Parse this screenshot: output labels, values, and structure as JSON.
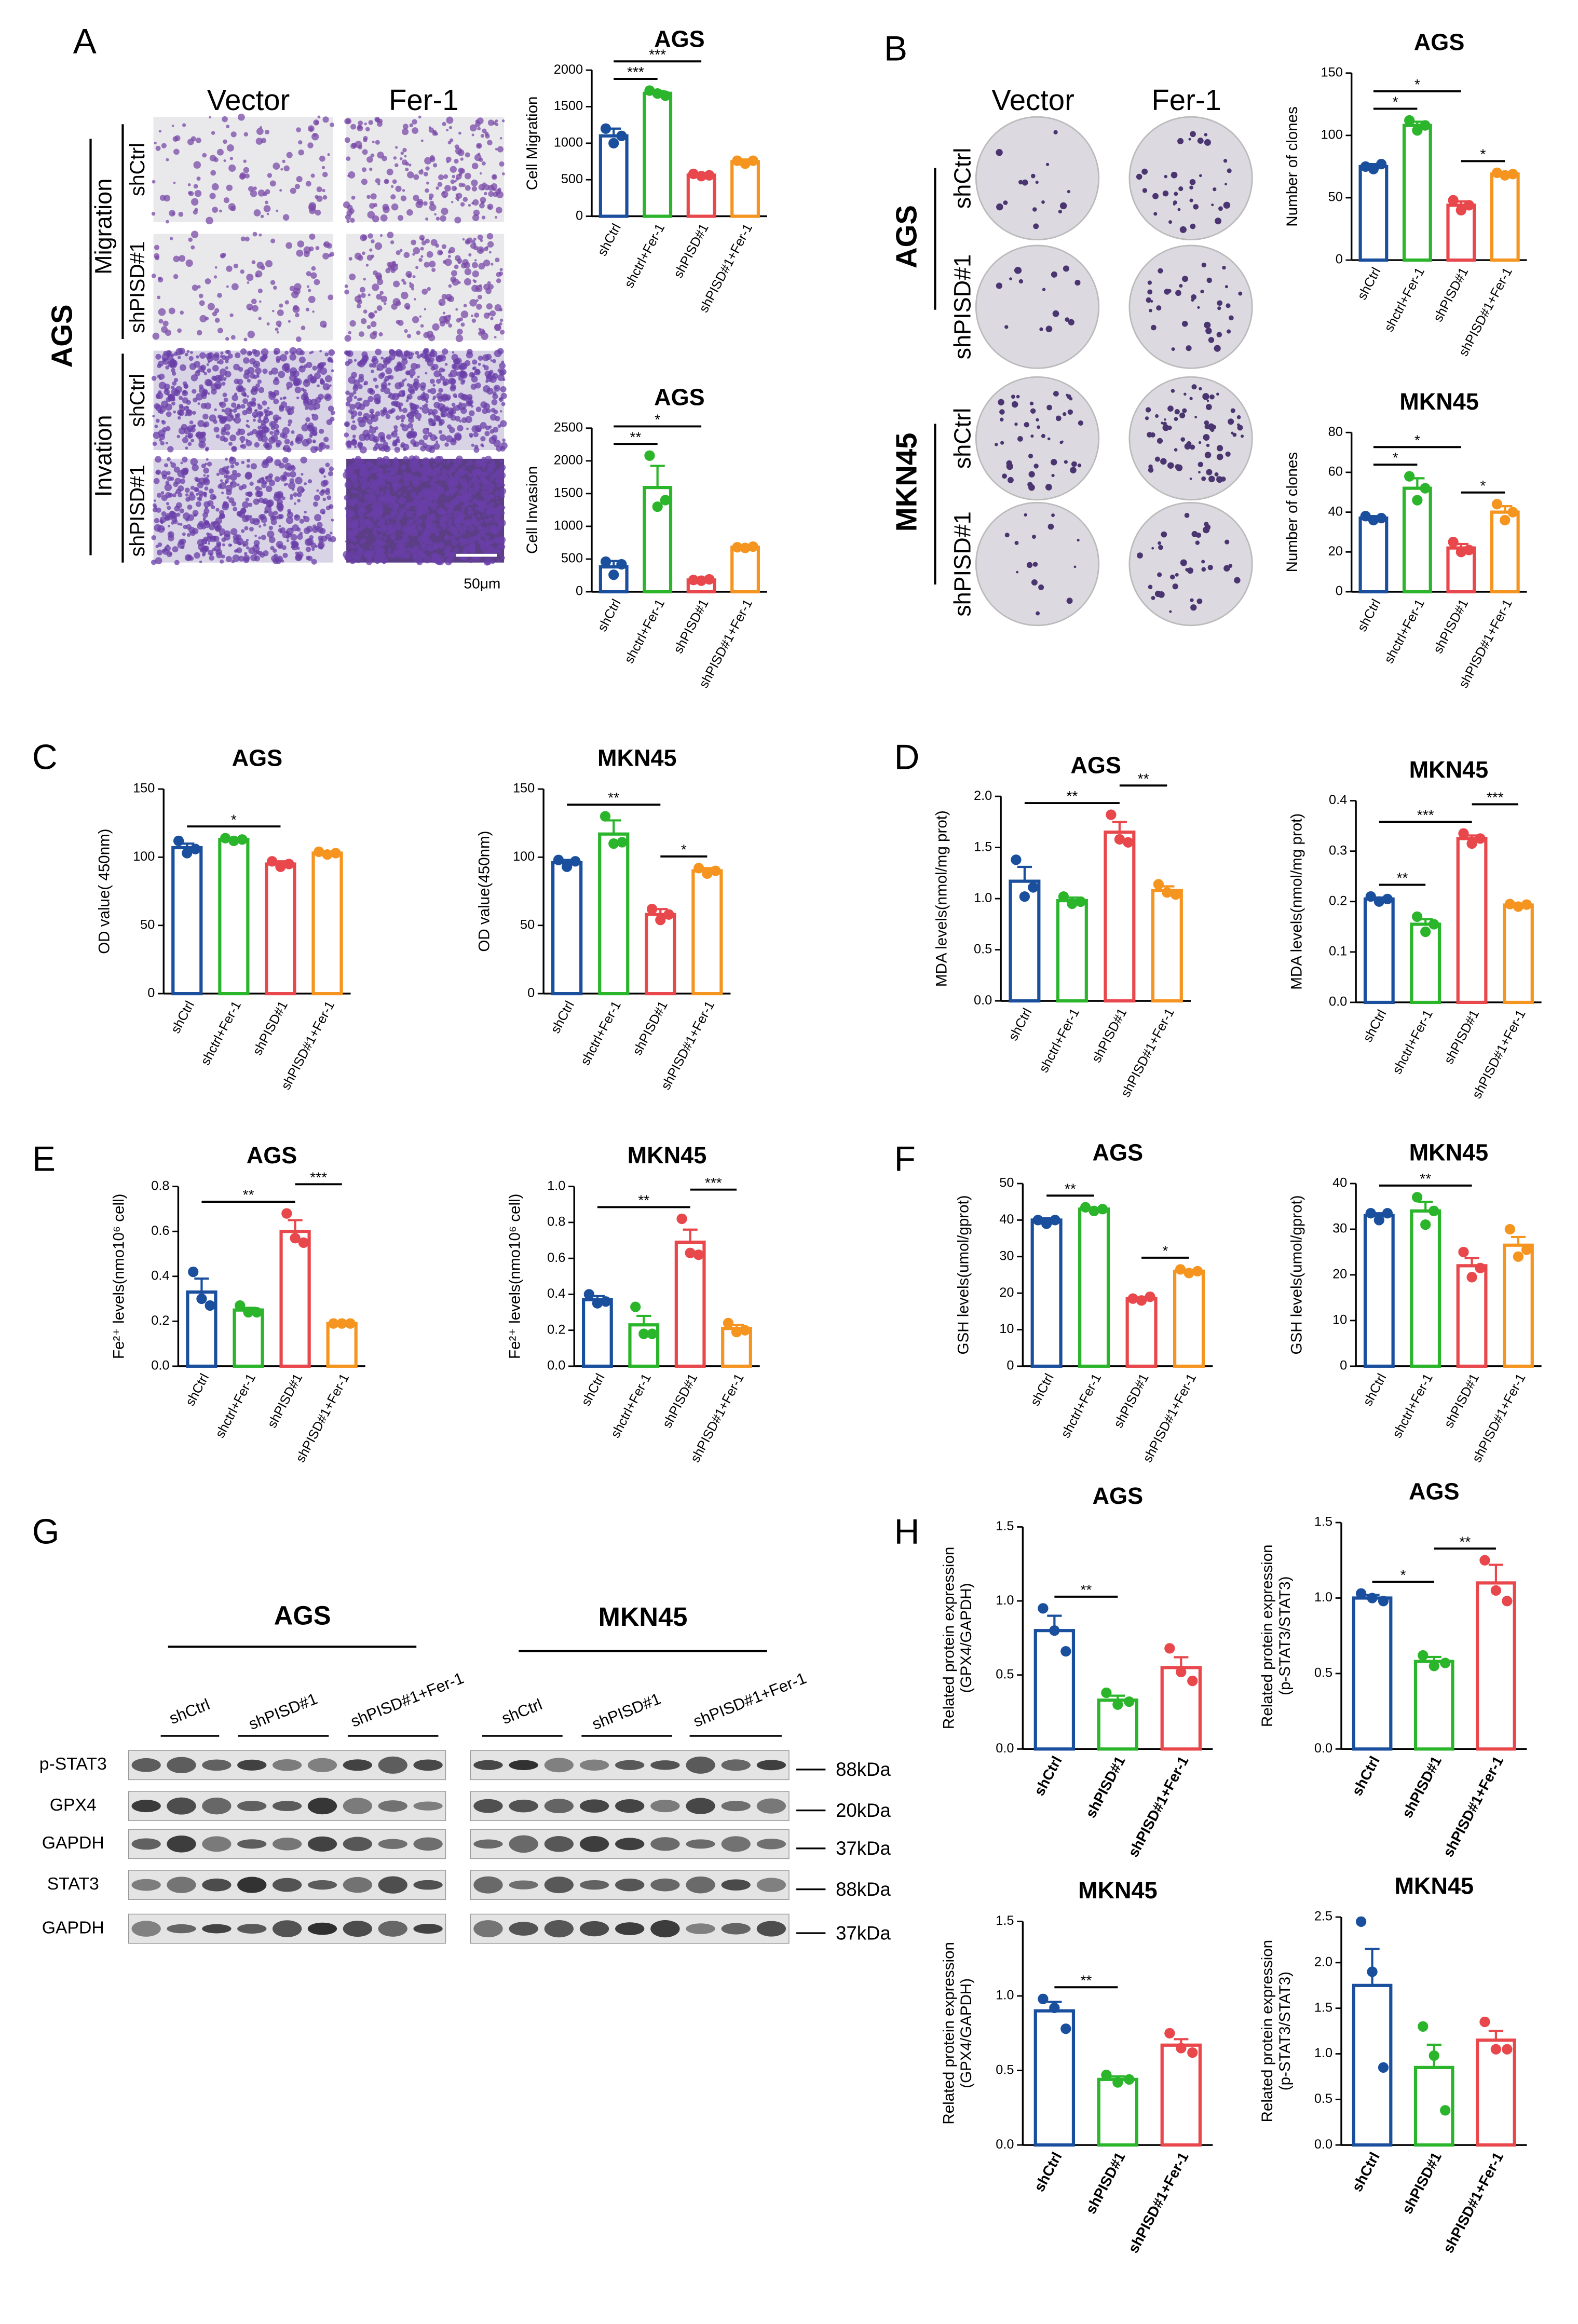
{
  "panel_labels": [
    "A",
    "B",
    "C",
    "D",
    "E",
    "F",
    "G",
    "H"
  ],
  "panel_a": {
    "columns": [
      "Vector",
      "Fer-1"
    ],
    "cell_line": "AGS",
    "groups": [
      "Migration",
      "Invation"
    ],
    "rows": [
      "shCtrl",
      "shPISD#1",
      "shCtrl",
      "shPISD#1"
    ],
    "scale_bar": "50μm"
  },
  "panel_b": {
    "columns": [
      "Vector",
      "Fer-1"
    ],
    "cell_lines": [
      "AGS",
      "MKN45"
    ],
    "rows": [
      "shCtrl",
      "shPISD#1",
      "shCtrl",
      "shPISD#1"
    ]
  },
  "panel_g": {
    "cell_lines": [
      "AGS",
      "MKN45"
    ],
    "groups": [
      "shCtrl",
      "shPISD#1",
      "shPISD#1+Fer-1",
      "shCtrl",
      "shPISD#1",
      "shPISD#1+Fer-1"
    ],
    "proteins": [
      "p-STAT3",
      "GPX4",
      "GAPDH",
      "STAT3",
      "GAPDH"
    ],
    "sizes": [
      "88kDa",
      "20kDa",
      "37kDa",
      "88kDa",
      "37kDa"
    ]
  },
  "chart_data": [
    {
      "type": "bar",
      "title": "AGS",
      "ylabel": [
        "Cell Migration"
      ],
      "categories": [
        "shCtrl",
        "shctrl+Fer-1",
        "shPISD#1",
        "shPISD#1+Fer-1"
      ],
      "colors": [
        "#1a4f9e",
        "#2bb52b",
        "#e8474c",
        "#f5951f"
      ],
      "values": [
        1100,
        1683,
        563,
        747
      ],
      "errors": [
        100,
        30,
        20,
        30
      ],
      "points": [
        [
          1200,
          1000,
          1100
        ],
        [
          1720,
          1680,
          1650
        ],
        [
          580,
          550,
          560
        ],
        [
          760,
          720,
          760
        ]
      ],
      "ylim": [
        0,
        2000
      ],
      "yticks": [
        0,
        500,
        1000,
        1500,
        2000
      ],
      "significance": [
        {
          "groups": [
            0,
            1
          ],
          "label": "***"
        },
        {
          "groups": [
            0,
            2
          ],
          "label": "***"
        }
      ]
    },
    {
      "type": "bar",
      "title": "AGS",
      "ylabel": [
        "Cell Invasion"
      ],
      "categories": [
        "shCtrl",
        "shctrl+Fer-1",
        "shPISD#1",
        "shPISD#1+Fer-1"
      ],
      "colors": [
        "#1a4f9e",
        "#2bb52b",
        "#e8474c",
        "#f5951f"
      ],
      "values": [
        380,
        1593,
        180,
        680
      ],
      "errors": [
        90,
        330,
        10,
        15
      ],
      "points": [
        [
          460,
          260,
          420
        ],
        [
          2080,
          1300,
          1400
        ],
        [
          180,
          170,
          190
        ],
        [
          680,
          670,
          690
        ]
      ],
      "ylim": [
        0,
        2500
      ],
      "yticks": [
        0,
        500,
        1000,
        1500,
        2000,
        2500
      ],
      "significance": [
        {
          "groups": [
            0,
            1
          ],
          "label": "**"
        },
        {
          "groups": [
            0,
            2
          ],
          "label": "*"
        }
      ]
    },
    {
      "type": "bar",
      "title": "AGS",
      "ylabel": [
        "Number of clones"
      ],
      "categories": [
        "shCtrl",
        "shctrl+Fer-1",
        "shPISD#1",
        "shPISD#1+Fer-1"
      ],
      "colors": [
        "#1a4f9e",
        "#2bb52b",
        "#e8474c",
        "#f5951f"
      ],
      "values": [
        75,
        108,
        44,
        69
      ],
      "errors": [
        2,
        3,
        3,
        1
      ],
      "points": [
        [
          75,
          73,
          77
        ],
        [
          112,
          104,
          108
        ],
        [
          48,
          40,
          44
        ],
        [
          70,
          68,
          69
        ]
      ],
      "ylim": [
        0,
        150
      ],
      "yticks": [
        0,
        50,
        100,
        150
      ],
      "significance": [
        {
          "groups": [
            0,
            1
          ],
          "label": "*"
        },
        {
          "groups": [
            0,
            2
          ],
          "label": "*"
        },
        {
          "groups": [
            2,
            3
          ],
          "label": "*"
        }
      ]
    },
    {
      "type": "bar",
      "title": "MKN45",
      "ylabel": [
        "Number of clones"
      ],
      "categories": [
        "shCtrl",
        "shctrl+Fer-1",
        "shPISD#1",
        "shPISD#1+Fer-1"
      ],
      "colors": [
        "#1a4f9e",
        "#2bb52b",
        "#e8474c",
        "#f5951f"
      ],
      "values": [
        37,
        52,
        22,
        40
      ],
      "errors": [
        1,
        5,
        2,
        3
      ],
      "points": [
        [
          38,
          36,
          37
        ],
        [
          58,
          46,
          52
        ],
        [
          25,
          20,
          21
        ],
        [
          44,
          36,
          40
        ]
      ],
      "ylim": [
        0,
        80
      ],
      "yticks": [
        0,
        20,
        40,
        60,
        80
      ],
      "significance": [
        {
          "groups": [
            0,
            1
          ],
          "label": "*"
        },
        {
          "groups": [
            0,
            2
          ],
          "label": "*"
        },
        {
          "groups": [
            2,
            3
          ],
          "label": "*"
        }
      ]
    },
    {
      "type": "bar",
      "title": "AGS",
      "ylabel": [
        "OD value( 450nm)"
      ],
      "categories": [
        "shCtrl",
        "shctrl+Fer-1",
        "shPISD#1",
        "shPISD#1+Fer-1"
      ],
      "colors": [
        "#1a4f9e",
        "#2bb52b",
        "#e8474c",
        "#f5951f"
      ],
      "values": [
        107,
        113,
        95,
        103
      ],
      "errors": [
        3,
        1,
        2,
        1
      ],
      "points": [
        [
          112,
          103,
          106
        ],
        [
          114,
          112,
          113
        ],
        [
          97,
          93,
          95
        ],
        [
          104,
          102,
          103
        ]
      ],
      "ylim": [
        0,
        150
      ],
      "yticks": [
        0,
        50,
        100,
        150
      ],
      "significance": [
        {
          "groups": [
            0,
            2
          ],
          "label": "*"
        }
      ]
    },
    {
      "type": "bar",
      "title": "MKN45",
      "ylabel": [
        "OD value(450nm)"
      ],
      "categories": [
        "shCtrl",
        "shctrl+Fer-1",
        "shPISD#1",
        "shPISD#1+Fer-1"
      ],
      "colors": [
        "#1a4f9e",
        "#2bb52b",
        "#e8474c",
        "#f5951f"
      ],
      "values": [
        96,
        117,
        58,
        90
      ],
      "errors": [
        2,
        10,
        4,
        2
      ],
      "points": [
        [
          98,
          93,
          97
        ],
        [
          130,
          110,
          111
        ],
        [
          62,
          54,
          58
        ],
        [
          92,
          88,
          90
        ]
      ],
      "ylim": [
        0,
        150
      ],
      "yticks": [
        0,
        50,
        100,
        150
      ],
      "significance": [
        {
          "groups": [
            0,
            2
          ],
          "label": "**"
        },
        {
          "groups": [
            2,
            3
          ],
          "label": "*"
        }
      ]
    },
    {
      "type": "bar",
      "title": "AGS",
      "ylabel": [
        "MDA levels(nmol/mg prot)"
      ],
      "categories": [
        "shCtrl",
        "shctrl+Fer-1",
        "shPISD#1",
        "shPISD#1+Fer-1"
      ],
      "colors": [
        "#1a4f9e",
        "#2bb52b",
        "#e8474c",
        "#f5951f"
      ],
      "values": [
        1.17,
        0.98,
        1.65,
        1.08
      ],
      "errors": [
        0.14,
        0.03,
        0.1,
        0.04
      ],
      "points": [
        [
          1.38,
          1.02,
          1.11
        ],
        [
          1.02,
          0.95,
          0.97
        ],
        [
          1.82,
          1.58,
          1.55
        ],
        [
          1.14,
          1.06,
          1.04
        ]
      ],
      "ylim": [
        0,
        2
      ],
      "yticks": [
        {
          "value": 0,
          "label": "0.0"
        },
        0.5,
        {
          "value": 1,
          "label": "1.0"
        },
        1.5,
        {
          "value": 2,
          "label": "2.0"
        }
      ],
      "significance": [
        {
          "groups": [
            0,
            2
          ],
          "label": "**"
        },
        {
          "groups": [
            2,
            3
          ],
          "label": "**"
        }
      ]
    },
    {
      "type": "bar",
      "title": "MKN45",
      "ylabel": [
        "MDA levels(nmol/mg prot)"
      ],
      "categories": [
        "shCtrl",
        "shctrl+Fer-1",
        "shPISD#1",
        "shPISD#1+Fer-1"
      ],
      "colors": [
        "#1a4f9e",
        "#2bb52b",
        "#e8474c",
        "#f5951f"
      ],
      "values": [
        0.205,
        0.155,
        0.325,
        0.193
      ],
      "errors": [
        0.003,
        0.01,
        0.006,
        0.001
      ],
      "points": [
        [
          0.21,
          0.2,
          0.205
        ],
        [
          0.17,
          0.14,
          0.155
        ],
        [
          0.335,
          0.315,
          0.325
        ],
        [
          0.195,
          0.19,
          0.194
        ]
      ],
      "ylim": [
        0,
        0.4
      ],
      "yticks": [
        {
          "value": 0,
          "label": "0.0"
        },
        0.1,
        0.2,
        0.3,
        0.4
      ],
      "significance": [
        {
          "groups": [
            0,
            1
          ],
          "label": "**"
        },
        {
          "groups": [
            0,
            2
          ],
          "label": "***"
        },
        {
          "groups": [
            2,
            3
          ],
          "label": "***"
        }
      ]
    },
    {
      "type": "bar",
      "title": "AGS",
      "ylabel": [
        "Fe²⁺ levels(nmo10⁶ cell)"
      ],
      "categories": [
        "shCtrl",
        "shctrl+Fer-1",
        "shPISD#1",
        "shPISD#1+Fer-1"
      ],
      "colors": [
        "#1a4f9e",
        "#2bb52b",
        "#e8474c",
        "#f5951f"
      ],
      "values": [
        0.33,
        0.25,
        0.6,
        0.19
      ],
      "errors": [
        0.06,
        0.01,
        0.05,
        0.003
      ],
      "points": [
        [
          0.42,
          0.3,
          0.27
        ],
        [
          0.27,
          0.24,
          0.24
        ],
        [
          0.68,
          0.57,
          0.55
        ],
        [
          0.19,
          0.19,
          0.19
        ]
      ],
      "ylim": [
        0,
        0.8
      ],
      "yticks": [
        {
          "value": 0,
          "label": "0.0"
        },
        0.2,
        0.4,
        0.6,
        0.8
      ],
      "significance": [
        {
          "groups": [
            0,
            2
          ],
          "label": "**"
        },
        {
          "groups": [
            2,
            3
          ],
          "label": "***"
        }
      ]
    },
    {
      "type": "bar",
      "title": "MKN45",
      "ylabel": [
        "Fe²⁺ levels(nmo10⁶ cell)"
      ],
      "categories": [
        "shCtrl",
        "shctrl+Fer-1",
        "shPISD#1",
        "shPISD#1+Fer-1"
      ],
      "colors": [
        "#1a4f9e",
        "#2bb52b",
        "#e8474c",
        "#f5951f"
      ],
      "values": [
        0.37,
        0.23,
        0.69,
        0.21
      ],
      "errors": [
        0.02,
        0.05,
        0.07,
        0.02
      ],
      "points": [
        [
          0.4,
          0.35,
          0.36
        ],
        [
          0.33,
          0.18,
          0.18
        ],
        [
          0.82,
          0.63,
          0.62
        ],
        [
          0.24,
          0.19,
          0.2
        ]
      ],
      "ylim": [
        0,
        1
      ],
      "yticks": [
        {
          "value": 0,
          "label": "0.0"
        },
        0.2,
        0.4,
        0.6,
        0.8,
        {
          "value": 1,
          "label": "1.0"
        }
      ],
      "significance": [
        {
          "groups": [
            0,
            2
          ],
          "label": "**"
        },
        {
          "groups": [
            2,
            3
          ],
          "label": "***"
        }
      ]
    },
    {
      "type": "bar",
      "title": "AGS",
      "ylabel": [
        "GSH levels(umol/gprot)"
      ],
      "categories": [
        "shCtrl",
        "shctrl+Fer-1",
        "shPISD#1",
        "shPISD#1+Fer-1"
      ],
      "colors": [
        "#1a4f9e",
        "#2bb52b",
        "#e8474c",
        "#f5951f"
      ],
      "values": [
        40,
        43,
        18.5,
        26
      ],
      "errors": [
        0.5,
        0.3,
        0.3,
        0.4
      ],
      "points": [
        [
          40,
          39,
          40
        ],
        [
          43.5,
          42.5,
          43
        ],
        [
          18.5,
          18,
          19
        ],
        [
          26.5,
          25.5,
          26
        ]
      ],
      "ylim": [
        0,
        50
      ],
      "yticks": [
        0,
        10,
        20,
        30,
        40,
        50
      ],
      "significance": [
        {
          "groups": [
            0,
            1
          ],
          "label": "**"
        },
        {
          "groups": [
            2,
            3
          ],
          "label": "*"
        }
      ]
    },
    {
      "type": "bar",
      "title": "MKN45",
      "ylabel": [
        "GSH levels(umol/gprot)"
      ],
      "categories": [
        "shCtrl",
        "shctrl+Fer-1",
        "shPISD#1",
        "shPISD#1+Fer-1"
      ],
      "colors": [
        "#1a4f9e",
        "#2bb52b",
        "#e8474c",
        "#f5951f"
      ],
      "values": [
        33,
        34,
        22,
        26.5
      ],
      "errors": [
        0.5,
        2,
        1.7,
        1.8
      ],
      "points": [
        [
          33.5,
          32,
          33.5
        ],
        [
          37,
          31,
          34
        ],
        [
          25,
          19.5,
          21.5
        ],
        [
          30,
          24,
          25.5
        ]
      ],
      "ylim": [
        0,
        40
      ],
      "yticks": [
        0,
        10,
        20,
        30,
        40
      ],
      "significance": [
        {
          "groups": [
            0,
            2
          ],
          "label": "**"
        }
      ]
    },
    {
      "type": "bar",
      "title": "AGS",
      "ylabel": [
        "Related protein expression",
        "(GPX4/GAPDH)"
      ],
      "categories": [
        "shCtrl",
        "shPISD#1",
        "shPISD#1+Fer-1"
      ],
      "colors": [
        "#1a4f9e",
        "#2bb52b",
        "#e8474c"
      ],
      "values": [
        0.8,
        0.33,
        0.55
      ],
      "errors": [
        0.1,
        0.03,
        0.07
      ],
      "points": [
        [
          0.95,
          0.8,
          0.66
        ],
        [
          0.38,
          0.3,
          0.32
        ],
        [
          0.68,
          0.52,
          0.46
        ]
      ],
      "ylim": [
        0,
        1.5
      ],
      "yticks": [
        {
          "value": 0,
          "label": "0.0"
        },
        0.5,
        {
          "value": 1,
          "label": "1.0"
        },
        1.5
      ],
      "significance": [
        {
          "groups": [
            0,
            1
          ],
          "label": "**"
        }
      ]
    },
    {
      "type": "bar",
      "title": "AGS",
      "ylabel": [
        "Related protein expression",
        "(p-STAT3/STAT3)"
      ],
      "categories": [
        "shCtrl",
        "shPISD#1",
        "shPISD#1+Fer-1"
      ],
      "colors": [
        "#1a4f9e",
        "#2bb52b",
        "#e8474c"
      ],
      "values": [
        1,
        0.58,
        1.1
      ],
      "errors": [
        0.02,
        0.03,
        0.12
      ],
      "points": [
        [
          1.03,
          1,
          0.98
        ],
        [
          0.62,
          0.55,
          0.57
        ],
        [
          1.25,
          1.05,
          0.98
        ]
      ],
      "ylim": [
        0,
        1.5
      ],
      "yticks": [
        {
          "value": 0,
          "label": "0.0"
        },
        0.5,
        {
          "value": 1,
          "label": "1.0"
        },
        1.5
      ],
      "significance": [
        {
          "groups": [
            0,
            1
          ],
          "label": "*"
        },
        {
          "groups": [
            1,
            2
          ],
          "label": "**"
        }
      ]
    },
    {
      "type": "bar",
      "title": "MKN45",
      "ylabel": [
        "Related protein expression",
        "(GPX4/GAPDH)"
      ],
      "categories": [
        "shCtrl",
        "shPISD#1",
        "shPISD#1+Fer-1"
      ],
      "colors": [
        "#1a4f9e",
        "#2bb52b",
        "#e8474c"
      ],
      "values": [
        0.9,
        0.44,
        0.67
      ],
      "errors": [
        0.06,
        0.02,
        0.04
      ],
      "points": [
        [
          0.98,
          0.92,
          0.78
        ],
        [
          0.47,
          0.42,
          0.44
        ],
        [
          0.75,
          0.65,
          0.62
        ]
      ],
      "ylim": [
        0,
        1.5
      ],
      "yticks": [
        {
          "value": 0,
          "label": "0.0"
        },
        0.5,
        {
          "value": 1,
          "label": "1.0"
        },
        1.5
      ],
      "significance": [
        {
          "groups": [
            0,
            1
          ],
          "label": "**"
        }
      ]
    },
    {
      "type": "bar",
      "title": "MKN45",
      "ylabel": [
        "Related protein expression",
        "(p-STAT3/STAT3)"
      ],
      "categories": [
        "shCtrl",
        "shPISD#1",
        "shPISD#1+Fer-1"
      ],
      "colors": [
        "#1a4f9e",
        "#2bb52b",
        "#e8474c"
      ],
      "values": [
        1.75,
        0.85,
        1.15
      ],
      "errors": [
        0.4,
        0.25,
        0.1
      ],
      "points": [
        [
          2.45,
          1.9,
          0.85
        ],
        [
          1.3,
          0.98,
          0.38
        ],
        [
          1.35,
          1.05,
          1.05
        ]
      ],
      "ylim": [
        0,
        2.5
      ],
      "yticks": [
        {
          "value": 0,
          "label": "0.0"
        },
        0.5,
        {
          "value": 1,
          "label": "1.0"
        },
        1.5,
        {
          "value": 2,
          "label": "2.0"
        },
        2.5
      ],
      "significance": []
    }
  ]
}
